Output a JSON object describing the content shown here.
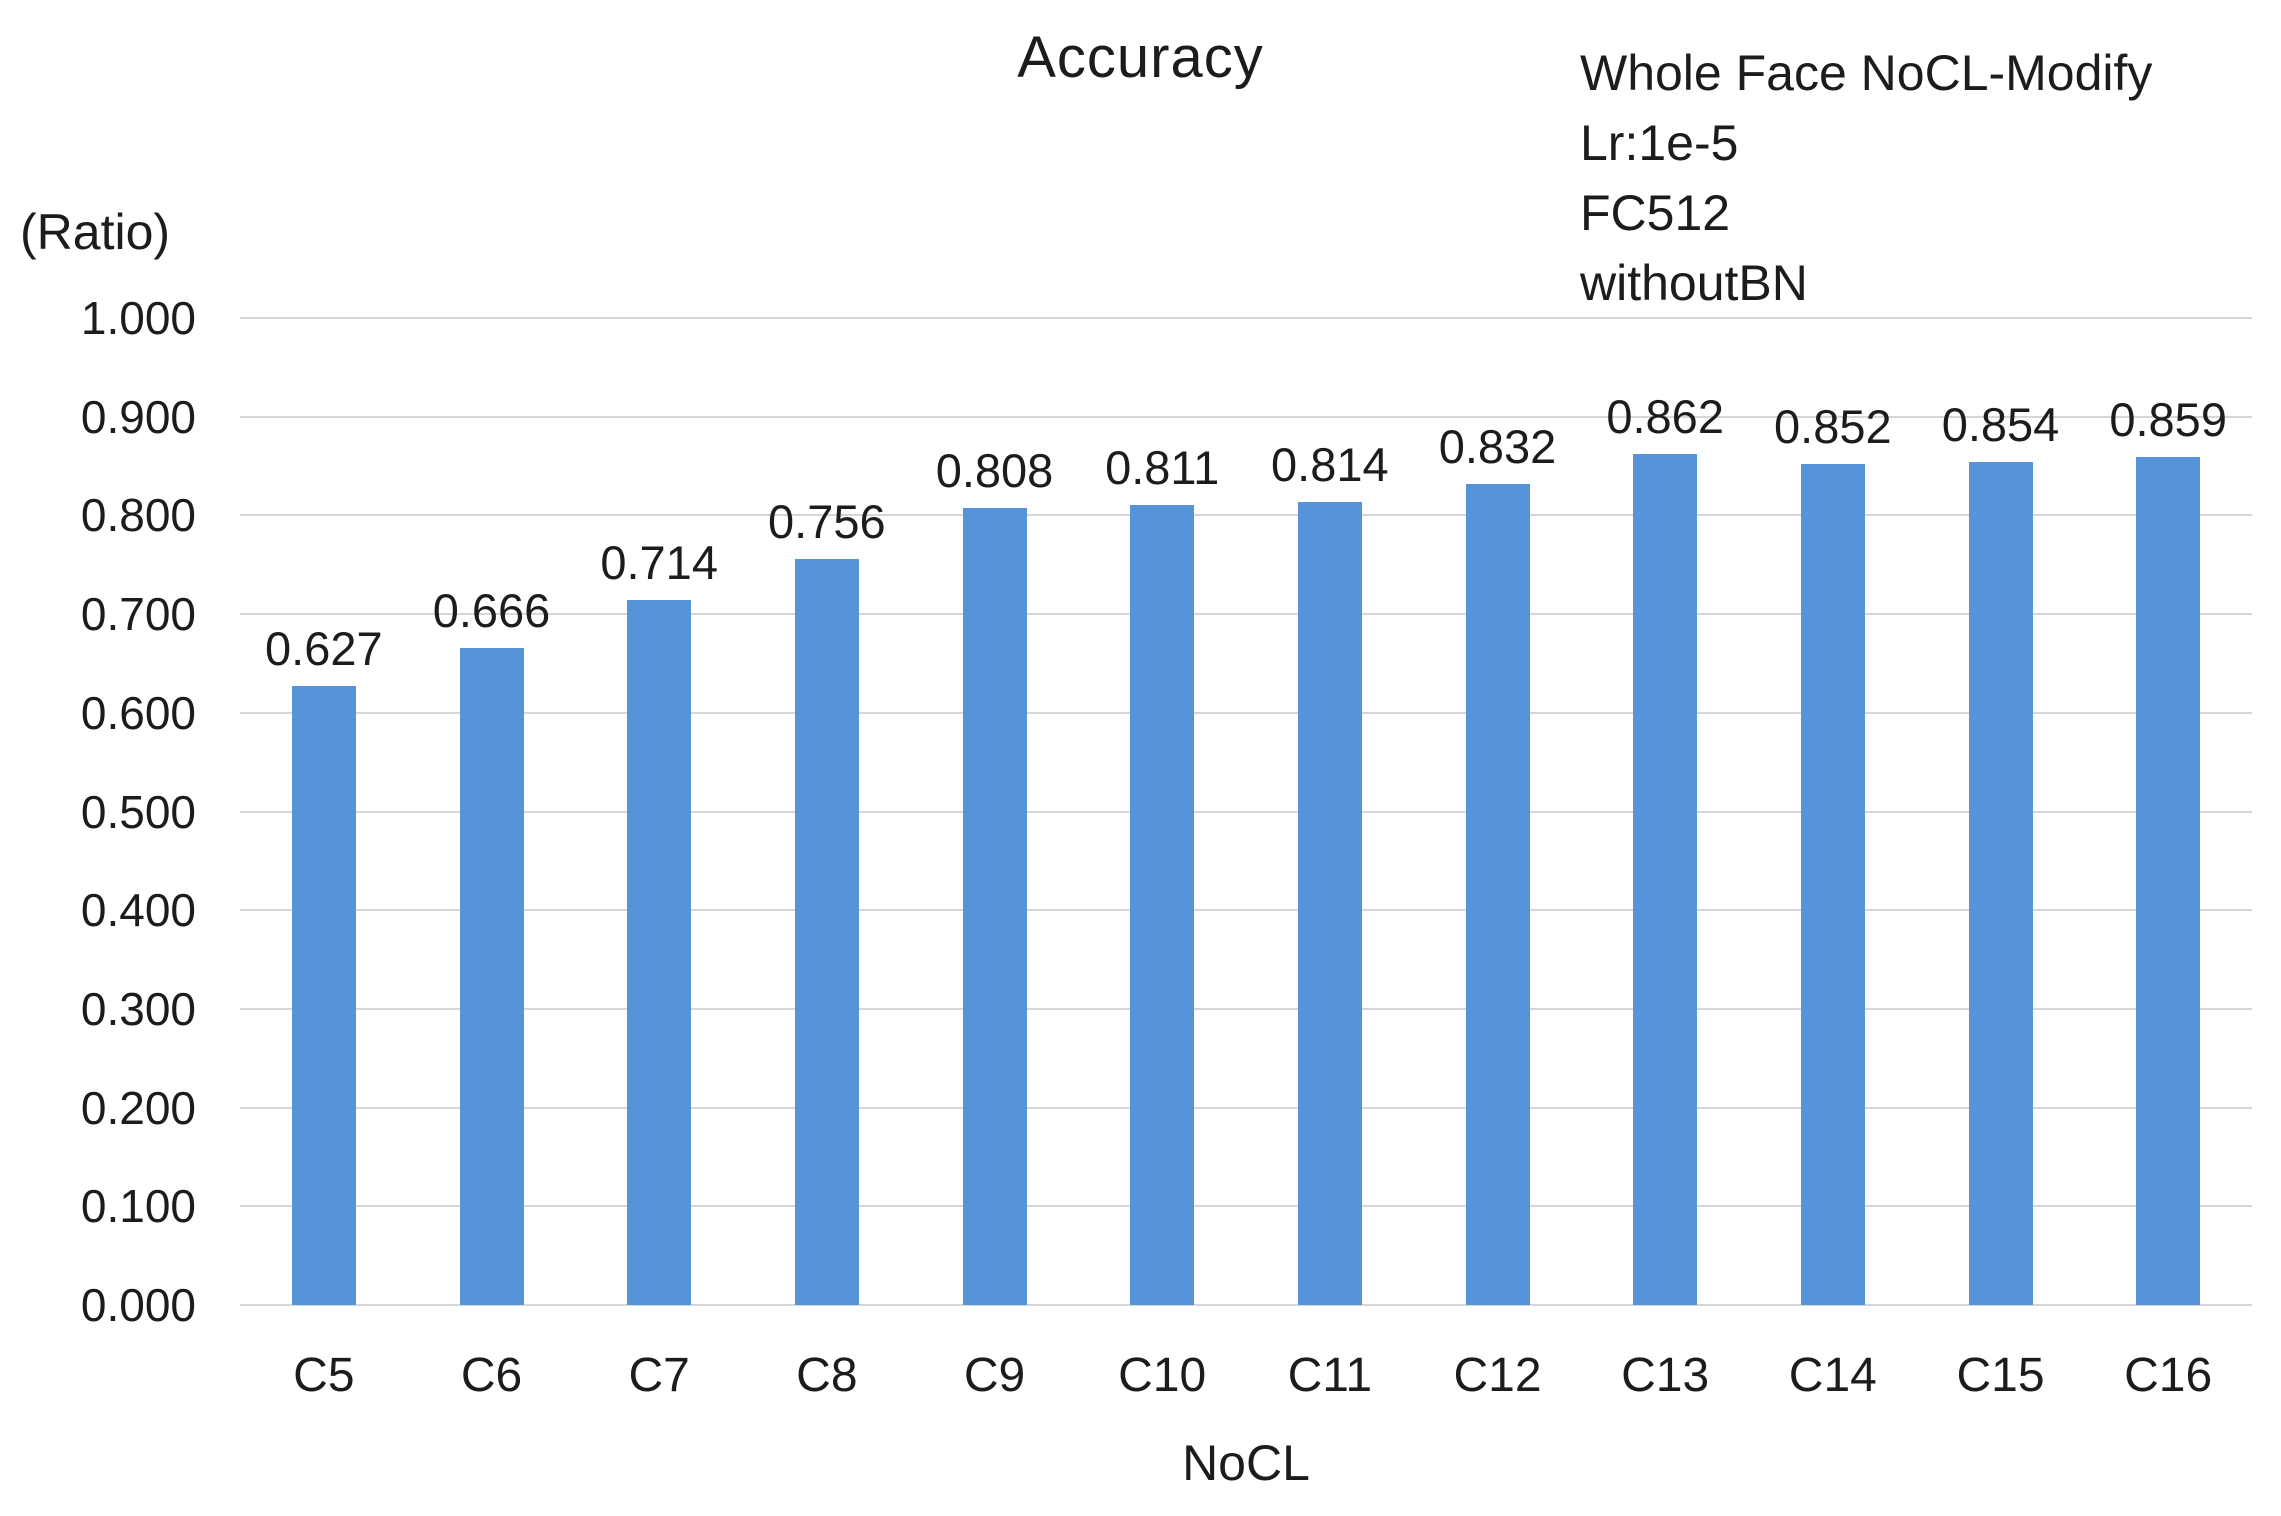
{
  "chart_data": {
    "type": "bar",
    "title": "Accuracy",
    "ylabel": "(Ratio)",
    "xlabel": "NoCL",
    "categories": [
      "C5",
      "C6",
      "C7",
      "C8",
      "C9",
      "C10",
      "C11",
      "C12",
      "C13",
      "C14",
      "C15",
      "C16"
    ],
    "values": [
      0.627,
      0.666,
      0.714,
      0.756,
      0.808,
      0.811,
      0.814,
      0.832,
      0.862,
      0.852,
      0.854,
      0.859
    ],
    "data_labels": [
      "0.627",
      "0.666",
      "0.714",
      "0.756",
      "0.808",
      "0.811",
      "0.814",
      "0.832",
      "0.862",
      "0.852",
      "0.854",
      "0.859"
    ],
    "annotation_lines": [
      "Whole Face NoCL-Modify",
      "Lr:1e-5",
      "FC512",
      "withoutBN"
    ],
    "ylim": [
      0.0,
      1.0
    ],
    "ytick_step": 0.1,
    "ytick_labels": [
      "0.000",
      "0.100",
      "0.200",
      "0.300",
      "0.400",
      "0.500",
      "0.600",
      "0.700",
      "0.800",
      "0.900",
      "1.000"
    ],
    "grid": "horizontal",
    "legend": "none",
    "colors": {
      "bar": "#5594D8",
      "gridline": "#D6D6D6",
      "text": "#1C1C1C",
      "background": "#FFFFFF"
    }
  }
}
